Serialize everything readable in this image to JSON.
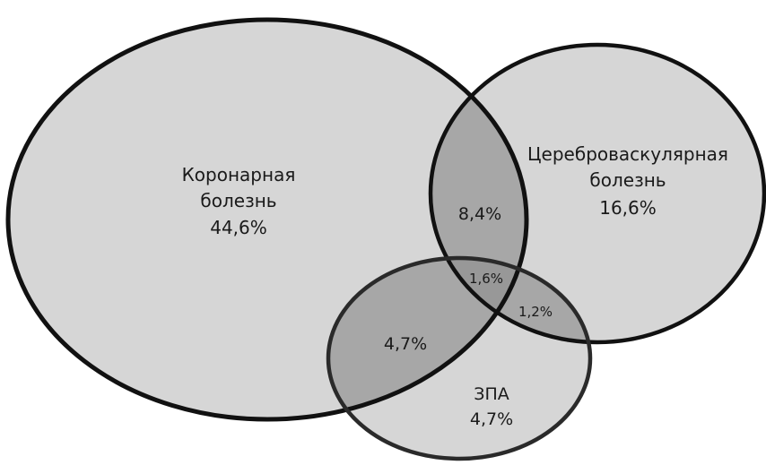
{
  "colors": {
    "background": "#ffffff",
    "circle_fill": "#d6d6d6",
    "overlap_fill": "#a7a7a7",
    "center_fill": "#989898",
    "stroke": "#111111",
    "text": "#1a1a1a"
  },
  "sets": {
    "coronary": {
      "name_line1": "Коронарная",
      "name_line2": "болезнь",
      "value": "44,6%"
    },
    "cerebro": {
      "name_line1": "Цереброваскулярная",
      "name_line2": "болезнь",
      "value": "16,6%"
    },
    "zpa": {
      "name": "ЗПА",
      "value": "4,7%"
    }
  },
  "overlaps": {
    "coronary_cerebro": "8,4%",
    "coronary_zpa": "4,7%",
    "cerebro_zpa": "1,2%",
    "all_three": "1,6%"
  }
}
